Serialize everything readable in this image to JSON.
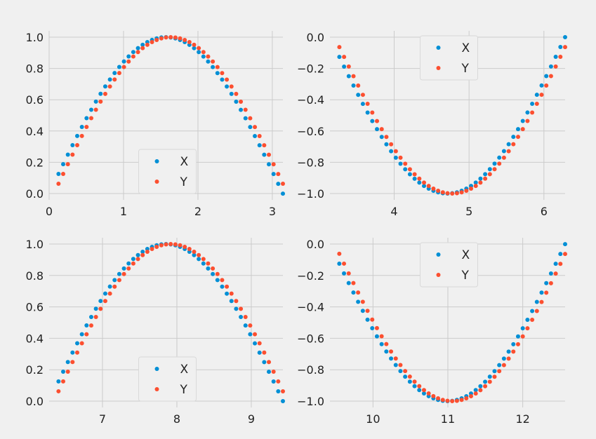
{
  "colors": {
    "background": "#f0f0f0",
    "grid": "#cbcbcb",
    "text": "#222222",
    "series_X": "#008fd5",
    "series_Y": "#fc4f30",
    "legend_bg": "#f0f0f0",
    "legend_border": "#d9d9d9"
  },
  "chart_data": [
    {
      "type": "scatter",
      "panel": "top-left",
      "series": [
        {
          "name": "X",
          "function": "sin",
          "x_start": 0.126,
          "x_end": 3.142,
          "points": 49
        },
        {
          "name": "Y",
          "function": "sin",
          "x_start": 0.126,
          "x_end": 3.142,
          "points": 49,
          "shift": 0.063
        }
      ],
      "xlim": [
        0.0,
        3.142
      ],
      "ylim": [
        0.0,
        1.0
      ],
      "xticks": [
        0,
        1,
        2,
        3
      ],
      "xtick_labels": [
        "0",
        "1",
        "2",
        "3"
      ],
      "yticks": [
        0.0,
        0.2,
        0.4,
        0.6,
        0.8,
        1.0
      ],
      "ytick_labels": [
        "0.0",
        "0.2",
        "0.4",
        "0.6",
        "0.8",
        "1.0"
      ],
      "legend": {
        "entries": [
          "X",
          "Y"
        ],
        "placement": "bottom-center"
      },
      "grid": true
    },
    {
      "type": "scatter",
      "panel": "top-right",
      "series": [
        {
          "name": "X",
          "function": "sin",
          "x_start": 3.268,
          "x_end": 6.283,
          "points": 49
        },
        {
          "name": "Y",
          "function": "sin",
          "x_start": 3.268,
          "x_end": 6.283,
          "points": 49,
          "shift": 0.063
        }
      ],
      "xlim": [
        3.142,
        6.283
      ],
      "ylim": [
        -1.0,
        0.0
      ],
      "xticks": [
        4,
        5,
        6
      ],
      "xtick_labels": [
        "4",
        "5",
        "6"
      ],
      "yticks": [
        0.0,
        -0.2,
        -0.4,
        -0.6,
        -0.8,
        -1.0
      ],
      "ytick_labels": [
        "0.0",
        "−0.2",
        "−0.4",
        "−0.6",
        "−0.8",
        "−1.0"
      ],
      "legend": {
        "entries": [
          "X",
          "Y"
        ],
        "placement": "top-center"
      },
      "grid": true
    },
    {
      "type": "scatter",
      "panel": "bottom-left",
      "series": [
        {
          "name": "X",
          "function": "sin",
          "x_start": 6.409,
          "x_end": 9.425,
          "points": 49
        },
        {
          "name": "Y",
          "function": "sin",
          "x_start": 6.409,
          "x_end": 9.425,
          "points": 49,
          "shift": 0.063
        }
      ],
      "xlim": [
        6.283,
        9.425
      ],
      "ylim": [
        0.0,
        1.0
      ],
      "xticks": [
        7,
        8,
        9
      ],
      "xtick_labels": [
        "7",
        "8",
        "9"
      ],
      "yticks": [
        0.0,
        0.2,
        0.4,
        0.6,
        0.8,
        1.0
      ],
      "ytick_labels": [
        "0.0",
        "0.2",
        "0.4",
        "0.6",
        "0.8",
        "1.0"
      ],
      "legend": {
        "entries": [
          "X",
          "Y"
        ],
        "placement": "bottom-center"
      },
      "grid": true
    },
    {
      "type": "scatter",
      "panel": "bottom-right",
      "series": [
        {
          "name": "X",
          "function": "sin",
          "x_start": 9.55,
          "x_end": 12.566,
          "points": 49
        },
        {
          "name": "Y",
          "function": "sin",
          "x_start": 9.55,
          "x_end": 12.566,
          "points": 49,
          "shift": 0.063
        }
      ],
      "xlim": [
        9.425,
        12.566
      ],
      "ylim": [
        -1.0,
        0.0
      ],
      "xticks": [
        10,
        11,
        12
      ],
      "xtick_labels": [
        "10",
        "11",
        "12"
      ],
      "yticks": [
        0.0,
        -0.2,
        -0.4,
        -0.6,
        -0.8,
        -1.0
      ],
      "ytick_labels": [
        "0.0",
        "−0.2",
        "−0.4",
        "−0.6",
        "−0.8",
        "−1.0"
      ],
      "legend": {
        "entries": [
          "X",
          "Y"
        ],
        "placement": "top-center"
      },
      "grid": true
    }
  ]
}
